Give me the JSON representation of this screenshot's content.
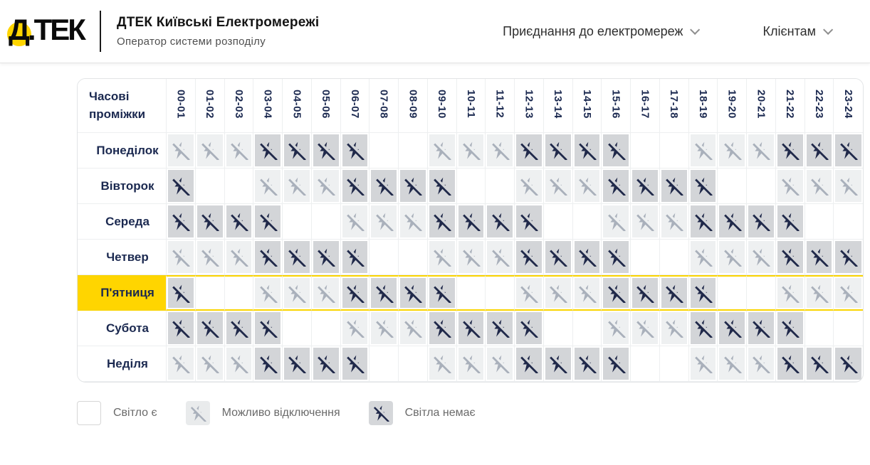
{
  "header": {
    "logo_text": "Д.ТЕК",
    "company_title": "ДТЕК Київські Електромережі",
    "company_subtitle": "Оператор системи розподілу",
    "nav": [
      {
        "label": "Приєднання до електромереж"
      },
      {
        "label": "Клієнтам"
      }
    ]
  },
  "schedule": {
    "corner_label": "Часові проміжки",
    "time_slots": [
      "00-01",
      "01-02",
      "02-03",
      "03-04",
      "04-05",
      "05-06",
      "06-07",
      "07-08",
      "08-09",
      "09-10",
      "10-11",
      "11-12",
      "12-13",
      "13-14",
      "14-15",
      "15-16",
      "16-17",
      "17-18",
      "18-19",
      "19-20",
      "20-21",
      "21-22",
      "22-23",
      "23-24"
    ],
    "rows": [
      {
        "day": "Понеділок",
        "highlighted": false,
        "cells": [
          "maybe",
          "maybe",
          "maybe",
          "off",
          "off",
          "off",
          "off",
          "on",
          "on",
          "maybe",
          "maybe",
          "maybe",
          "off",
          "off",
          "off",
          "off",
          "on",
          "on",
          "maybe",
          "maybe",
          "maybe",
          "off",
          "off",
          "off"
        ]
      },
      {
        "day": "Вівторок",
        "highlighted": false,
        "cells": [
          "off",
          "on",
          "on",
          "maybe",
          "maybe",
          "maybe",
          "off",
          "off",
          "off",
          "off",
          "on",
          "on",
          "maybe",
          "maybe",
          "maybe",
          "off",
          "off",
          "off",
          "off",
          "on",
          "on",
          "maybe",
          "maybe",
          "maybe"
        ]
      },
      {
        "day": "Середа",
        "highlighted": false,
        "cells": [
          "off",
          "off",
          "off",
          "off",
          "on",
          "on",
          "maybe",
          "maybe",
          "maybe",
          "off",
          "off",
          "off",
          "off",
          "on",
          "on",
          "maybe",
          "maybe",
          "maybe",
          "off",
          "off",
          "off",
          "off",
          "on",
          "on"
        ]
      },
      {
        "day": "Четвер",
        "highlighted": false,
        "cells": [
          "maybe",
          "maybe",
          "maybe",
          "off",
          "off",
          "off",
          "off",
          "on",
          "on",
          "maybe",
          "maybe",
          "maybe",
          "off",
          "off",
          "off",
          "off",
          "on",
          "on",
          "maybe",
          "maybe",
          "maybe",
          "off",
          "off",
          "off"
        ]
      },
      {
        "day": "П'ятниця",
        "highlighted": true,
        "cells": [
          "off",
          "on",
          "on",
          "maybe",
          "maybe",
          "maybe",
          "off",
          "off",
          "off",
          "off",
          "on",
          "on",
          "maybe",
          "maybe",
          "maybe",
          "off",
          "off",
          "off",
          "off",
          "on",
          "on",
          "maybe",
          "maybe",
          "maybe"
        ]
      },
      {
        "day": "Субота",
        "highlighted": false,
        "cells": [
          "off",
          "off",
          "off",
          "off",
          "on",
          "on",
          "maybe",
          "maybe",
          "maybe",
          "off",
          "off",
          "off",
          "off",
          "on",
          "on",
          "maybe",
          "maybe",
          "maybe",
          "off",
          "off",
          "off",
          "off",
          "on",
          "on"
        ]
      },
      {
        "day": "Неділя",
        "highlighted": false,
        "cells": [
          "maybe",
          "maybe",
          "maybe",
          "off",
          "off",
          "off",
          "off",
          "on",
          "on",
          "maybe",
          "maybe",
          "maybe",
          "off",
          "off",
          "off",
          "off",
          "on",
          "on",
          "maybe",
          "maybe",
          "maybe",
          "off",
          "off",
          "off"
        ]
      }
    ]
  },
  "legend": {
    "items": [
      {
        "state": "on",
        "label": "Світло є"
      },
      {
        "state": "maybe",
        "label": "Можливо відключення"
      },
      {
        "state": "off",
        "label": "Світла немає"
      }
    ]
  },
  "colors": {
    "accent_yellow": "#ffd500",
    "navy_text": "#1b2950",
    "maybe_cell_bg": "#eef0f1",
    "maybe_icon": "#a9b0bb",
    "off_cell_bg": "#d3d5d8",
    "off_icon": "#20294a"
  }
}
